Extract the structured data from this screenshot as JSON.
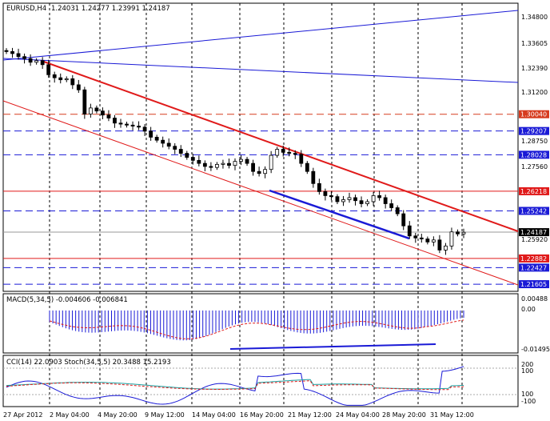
{
  "main": {
    "symbol": "EURUSD,H4",
    "ohlc": "1.24031 1.24277 1.23991 1.24187",
    "price_axis": [
      "1.34800",
      "1.33605",
      "1.32390",
      "1.31200",
      "1.28750",
      "1.27560",
      "1.25920"
    ],
    "levels": [
      {
        "label": "1.30040",
        "color": "#d63b1e",
        "style": "dashed"
      },
      {
        "label": "1.29207",
        "color": "#1a1ad6",
        "style": "dashed"
      },
      {
        "label": "1.28028",
        "color": "#1a1ad6",
        "style": "dashed"
      },
      {
        "label": "1.26218",
        "color": "#e01a1a",
        "style": "solid"
      },
      {
        "label": "1.25242",
        "color": "#1a1ad6",
        "style": "dashed"
      },
      {
        "label": "1.24187",
        "color": "#000000",
        "style": "current"
      },
      {
        "label": "1.22882",
        "color": "#e01a1a",
        "style": "solid"
      },
      {
        "label": "1.22427",
        "color": "#1a1ad6",
        "style": "dashed"
      },
      {
        "label": "1.21605",
        "color": "#1a1ad6",
        "style": "dashed"
      }
    ]
  },
  "macd": {
    "title": "MACD(5,34,5) -0.004606 -0.006841",
    "axis": [
      "0.00488",
      "0.00",
      "-0.01495"
    ]
  },
  "stoch": {
    "title": "CCI(14) 22.0903  Stoch(34,5,5) 20.3488 15.2193",
    "axis": [
      "200",
      "100",
      "100",
      "-100"
    ]
  },
  "time_axis": [
    "27 Apr 2012",
    "2 May 04:00",
    "4 May 20:00",
    "9 May 12:00",
    "14 May 04:00",
    "16 May 20:00",
    "21 May 12:00",
    "24 May 04:00",
    "28 May 20:00",
    "31 May 12:00"
  ],
  "chart_data": {
    "type": "candlestick",
    "symbol": "EURUSD",
    "timeframe": "H4",
    "closes": [
      1.3315,
      1.3305,
      1.329,
      1.328,
      1.3262,
      1.327,
      1.325,
      1.32,
      1.3185,
      1.3175,
      1.318,
      1.315,
      1.3125,
      1.3005,
      1.3035,
      1.302,
      1.3,
      1.2985,
      1.296,
      1.2955,
      1.295,
      1.2945,
      1.294,
      1.292,
      1.289,
      1.2875,
      1.286,
      1.2845,
      1.283,
      1.281,
      1.279,
      1.2775,
      1.276,
      1.2745,
      1.274,
      1.2755,
      1.276,
      1.275,
      1.277,
      1.278,
      1.276,
      1.272,
      1.271,
      1.273,
      1.28,
      1.283,
      1.2815,
      1.281,
      1.2805,
      1.276,
      1.272,
      1.266,
      1.262,
      1.26,
      1.2595,
      1.257,
      1.258,
      1.259,
      1.2575,
      1.256,
      1.257,
      1.26,
      1.259,
      1.256,
      1.254,
      1.251,
      1.245,
      1.24,
      1.239,
      1.2385,
      1.237,
      1.238,
      1.233,
      1.235,
      1.242,
      1.241,
      1.2418
    ],
    "price_range": [
      1.2125,
      1.3555
    ],
    "macd_range": [
      -0.0165,
      0.0065
    ],
    "osc_range": [
      -150,
      250
    ]
  }
}
